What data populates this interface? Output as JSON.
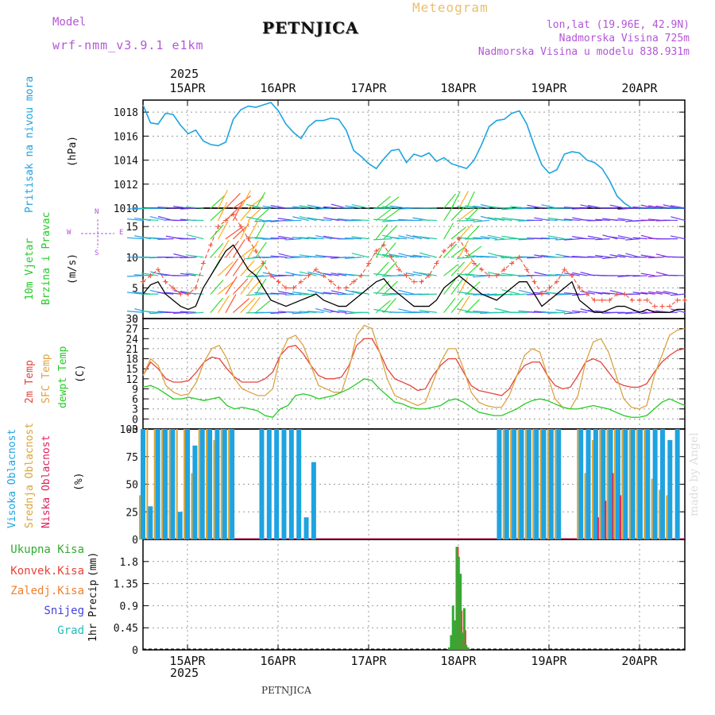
{
  "header": {
    "model_label": "Model",
    "model_name": "wrf-nmm_v3.9.1 e1km",
    "station": "PETNJICA",
    "meteogram": "Meteogram",
    "lonlat": "lon,lat (19.96E, 42.9N)",
    "elevation": "Nadmorska Visina 725m",
    "model_elevation": "Nadmorska Visina u modelu 838.931m",
    "year_top": "2025",
    "year_bottom": "2025",
    "footer_station": "PETNJICA",
    "credit": "made by Angel"
  },
  "colors": {
    "pressure": "#1ea3e0",
    "temp2m": "#e5433a",
    "sfc": "#dba444",
    "dewpt": "#22cc22",
    "wind_black": "#000000",
    "gust": "#f05038",
    "high_cloud": "#1ea3e0",
    "mid_cloud": "#d9a53a",
    "low_cloud": "#e0205a",
    "total_precip": "#33aa33",
    "conv_precip": "#e5433a",
    "frozen": "#f08030",
    "snow": "#4444dd",
    "graupel": "#22bbbb",
    "label_purple": "#b455d8",
    "label_gold": "#e8c070"
  },
  "chart_data": [
    {
      "type": "line",
      "name": "pressure",
      "ylabel": "Pritisak na nivou mora",
      "unit": "(hPa)",
      "ylim": [
        1010,
        1019
      ],
      "yticks": [
        "1018",
        "1016",
        "1014",
        "1012",
        "1010"
      ],
      "xticks": [
        "15APR",
        "16APR",
        "17APR",
        "18APR",
        "19APR",
        "20APR"
      ],
      "grid": true,
      "x_hours": [
        0,
        2,
        4,
        6,
        8,
        10,
        12,
        14,
        16,
        18,
        20,
        22,
        24,
        26,
        28,
        30,
        32,
        34,
        36,
        38,
        40,
        42,
        44,
        46,
        48,
        50,
        52,
        54,
        56,
        58,
        60,
        62,
        64,
        66,
        68,
        70,
        72,
        74,
        76,
        78,
        80,
        82,
        84,
        86,
        88,
        90,
        92,
        94,
        96,
        98,
        100,
        102,
        104,
        106,
        108,
        110,
        112,
        114,
        116,
        118,
        120,
        122,
        124,
        126,
        128,
        130,
        132,
        134,
        136,
        138,
        140,
        142,
        144
      ],
      "values": [
        1018.6,
        1017.1,
        1017.0,
        1017.9,
        1017.8,
        1016.9,
        1016.2,
        1016.5,
        1015.6,
        1015.3,
        1015.2,
        1015.5,
        1017.4,
        1018.2,
        1018.5,
        1018.4,
        1018.6,
        1018.8,
        1018.1,
        1017.0,
        1016.3,
        1015.8,
        1016.8,
        1017.3,
        1017.3,
        1017.5,
        1017.4,
        1016.5,
        1014.8,
        1014.3,
        1013.7,
        1013.3,
        1014.1,
        1014.8,
        1014.9,
        1013.8,
        1014.5,
        1014.3,
        1014.6,
        1013.9,
        1014.2,
        1013.7,
        1013.5,
        1013.3,
        1014.0,
        1015.3,
        1016.8,
        1017.3,
        1017.4,
        1017.9,
        1018.1,
        1017.0,
        1015.2,
        1013.6,
        1012.9,
        1013.2,
        1014.5,
        1014.7,
        1014.6,
        1014.0,
        1013.8,
        1013.3,
        1012.3,
        1011.0,
        1010.4,
        1010.0,
        1010.0,
        1010.0,
        1010.0,
        1010.0,
        1010.0,
        1010.0,
        1010.0
      ]
    },
    {
      "type": "line",
      "name": "wind",
      "ylabel": "10m Vjetar",
      "ylabel2": "Brzina i Pravac",
      "unit": "(m/s)",
      "ylim": [
        0,
        18
      ],
      "yticks": [
        "15",
        "10",
        "5",
        "0"
      ],
      "compass": {
        "n": "N",
        "e": "E",
        "s": "S",
        "w": "W"
      },
      "series": [
        {
          "name": "speed",
          "values": [
            4,
            5.5,
            6,
            4,
            3,
            2,
            1.5,
            2,
            5,
            7,
            9,
            11,
            12,
            10,
            8,
            7,
            5,
            3,
            2.5,
            2,
            2.5,
            3,
            3.5,
            4,
            3,
            2.5,
            2,
            2,
            3,
            4,
            5,
            6,
            6.5,
            5,
            4,
            3,
            2,
            2,
            2,
            3,
            5,
            6,
            7,
            6,
            5,
            4,
            3.5,
            3,
            4,
            5,
            6,
            6,
            4,
            2,
            3,
            4,
            5,
            6,
            3,
            2,
            1,
            1,
            1.5,
            2,
            2,
            1.5,
            1,
            1.5,
            1,
            1,
            1,
            1.5,
            1.5
          ]
        },
        {
          "name": "gust",
          "values": [
            6,
            7,
            8,
            6,
            5,
            4,
            4,
            5,
            9,
            12,
            15,
            16,
            17,
            15,
            13,
            11,
            9,
            7,
            6,
            5,
            5,
            6,
            7,
            8,
            7,
            6,
            5,
            5,
            6,
            7,
            9,
            11,
            12,
            10,
            8,
            7,
            6,
            6,
            7,
            9,
            11,
            12,
            13,
            11,
            9,
            8,
            7,
            7,
            8,
            9,
            10,
            8,
            6,
            4,
            5,
            6,
            8,
            7,
            5,
            4,
            3,
            3,
            3,
            4,
            4,
            3,
            3,
            3,
            2,
            2,
            2,
            3,
            3
          ]
        }
      ]
    },
    {
      "type": "line",
      "name": "temperature",
      "ylabel": "2m Temp",
      "ylabel2": "SFC Temp",
      "ylabel3": "dewpt Temp",
      "unit": "(C)",
      "ylim": [
        -3,
        30
      ],
      "yticks": [
        "30",
        "27",
        "24",
        "21",
        "18",
        "15",
        "12",
        "9",
        "6",
        "3",
        "0",
        "-3"
      ],
      "series": [
        {
          "name": "2m",
          "values": [
            13,
            17,
            15,
            12,
            11,
            11,
            11.5,
            14,
            17,
            18.5,
            18,
            15,
            12.5,
            11,
            11,
            11,
            12,
            14,
            19,
            21.5,
            22,
            19.5,
            16,
            13,
            12,
            12,
            12.5,
            16,
            22,
            24,
            24,
            20,
            15,
            12,
            11,
            10,
            8.5,
            9,
            13,
            16,
            18,
            18,
            14,
            10,
            8.5,
            8,
            7.5,
            7,
            9,
            13,
            16,
            17,
            17,
            13,
            10,
            9,
            9.5,
            13,
            17,
            18,
            17,
            14,
            11,
            10,
            9.5,
            9.5,
            10.5,
            14,
            17,
            19,
            20.5,
            21
          ]
        },
        {
          "name": "sfc",
          "values": [
            13,
            18,
            16,
            10,
            8,
            7,
            7.5,
            11,
            17,
            21,
            22,
            18,
            12,
            9,
            8,
            7,
            7,
            9,
            19,
            24,
            25,
            22,
            16,
            10,
            9,
            8,
            8,
            15,
            25,
            28,
            27,
            20,
            12,
            7,
            6,
            5,
            4,
            5,
            11,
            17,
            21,
            21,
            15,
            8,
            5,
            4,
            3.5,
            3.5,
            7,
            13,
            19,
            21,
            20,
            13,
            6,
            3.5,
            3,
            7,
            17,
            23,
            24,
            20,
            13,
            6,
            3.5,
            3,
            4,
            13,
            19,
            25,
            26.5,
            27
          ]
        },
        {
          "name": "dewpt",
          "values": [
            9.5,
            10,
            9,
            7.5,
            6,
            6,
            6.5,
            6,
            5.5,
            6,
            6.5,
            4,
            3,
            3.5,
            3,
            2.5,
            1,
            0.5,
            3,
            4,
            7,
            7.5,
            7,
            6,
            6.5,
            7,
            8,
            9,
            10.5,
            12,
            11.5,
            9,
            7,
            5,
            4.5,
            3.5,
            3,
            3,
            3.5,
            4,
            5.5,
            6,
            5,
            3.5,
            2,
            1.5,
            1,
            1,
            2,
            3,
            4.5,
            5.5,
            6,
            5.5,
            4.5,
            3.5,
            3,
            3,
            3.5,
            4,
            3.5,
            3,
            2,
            1,
            0.5,
            0.5,
            1,
            3,
            5,
            6,
            5,
            4
          ]
        }
      ]
    },
    {
      "type": "bar",
      "name": "clouds",
      "ylabel": "Visoka Oblacnost",
      "ylabel2": "Srednja Oblacnost",
      "ylabel3": "Niska Oblacnost",
      "unit": "(%)",
      "ylim": [
        0,
        100
      ],
      "yticks": [
        "100",
        "75",
        "50",
        "25",
        "0"
      ],
      "series": [
        {
          "name": "high",
          "values": [
            100,
            30,
            100,
            100,
            100,
            25,
            100,
            85,
            100,
            100,
            100,
            100,
            100,
            0,
            0,
            0,
            100,
            100,
            100,
            100,
            100,
            100,
            20,
            70,
            0,
            0,
            0,
            0,
            0,
            0,
            0,
            0,
            0,
            0,
            0,
            0,
            0,
            0,
            0,
            0,
            0,
            0,
            0,
            0,
            0,
            0,
            0,
            0,
            100,
            100,
            100,
            100,
            100,
            100,
            100,
            100,
            100,
            0,
            0,
            100,
            100,
            100,
            100,
            100,
            100,
            100,
            100,
            100,
            100,
            100,
            100,
            90,
            100,
            0
          ]
        },
        {
          "name": "mid",
          "values": [
            40,
            100,
            100,
            100,
            100,
            100,
            100,
            60,
            100,
            100,
            90,
            100,
            100,
            0,
            0,
            0,
            0,
            0,
            0,
            0,
            0,
            0,
            0,
            0,
            0,
            0,
            0,
            0,
            0,
            0,
            0,
            0,
            0,
            0,
            0,
            0,
            0,
            0,
            0,
            0,
            0,
            0,
            0,
            0,
            0,
            0,
            0,
            0,
            0,
            100,
            100,
            100,
            100,
            100,
            100,
            100,
            100,
            0,
            0,
            100,
            60,
            90,
            100,
            100,
            100,
            100,
            100,
            100,
            100,
            55,
            45,
            40,
            0,
            0
          ]
        },
        {
          "name": "low",
          "values": [
            0,
            0,
            0,
            0,
            0,
            0,
            0,
            0,
            0,
            0,
            0,
            0,
            0,
            0,
            0,
            0,
            0,
            0,
            0,
            0,
            0,
            0,
            0,
            0,
            0,
            0,
            0,
            0,
            0,
            0,
            0,
            0,
            0,
            0,
            0,
            0,
            0,
            0,
            0,
            0,
            0,
            0,
            0,
            0,
            0,
            0,
            0,
            0,
            0,
            0,
            0,
            0,
            0,
            0,
            0,
            0,
            0,
            0,
            0,
            0,
            0,
            20,
            35,
            60,
            40,
            0,
            0,
            0,
            0,
            0,
            0,
            0,
            0,
            0
          ]
        }
      ]
    },
    {
      "type": "bar",
      "name": "precip",
      "ylabel": "1hr Precip",
      "unit": "(mm)",
      "ylim": [
        0,
        2.25
      ],
      "yticks": [
        "1.8",
        "1.35",
        "0.9",
        "0.45",
        "0"
      ],
      "legend": [
        "Ukupna Kisa",
        "Konvek.Kisa",
        "Zaledj.Kisa",
        "Snijeg",
        "Grad"
      ],
      "x_hours": [
        81.5,
        82,
        82.5,
        83,
        83.5,
        84,
        84.5,
        85,
        85.5,
        86,
        86.5
      ],
      "series": [
        {
          "name": "total",
          "values": [
            0.05,
            0.3,
            0.9,
            0.6,
            2.1,
            1.9,
            1.55,
            0.35,
            0.85,
            0.1,
            0.05
          ]
        },
        {
          "name": "conv",
          "values": [
            0.02,
            0.15,
            0.4,
            0.3,
            2.1,
            1.4,
            0.8,
            0.2,
            0.4,
            0.05,
            0
          ]
        }
      ]
    }
  ]
}
